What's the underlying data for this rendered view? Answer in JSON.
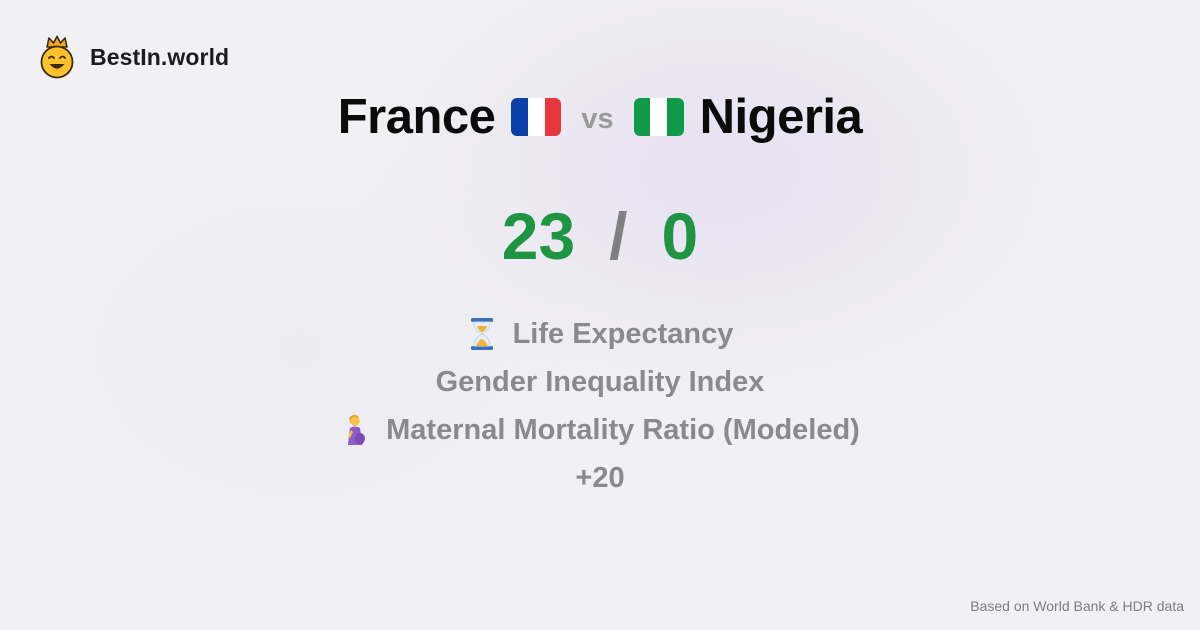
{
  "brand": {
    "name": "BestIn.world",
    "logo_icon": "crowned-smiley-logo-icon"
  },
  "comparison": {
    "country_a": "France",
    "flag_a_icon": "france-flag-icon",
    "separator": "vs",
    "country_b": "Nigeria",
    "flag_b_icon": "nigeria-flag-icon"
  },
  "score": {
    "a": "23",
    "separator": "/",
    "b": "0"
  },
  "metrics": [
    {
      "icon": "hourglass-icon",
      "label": "Life Expectancy"
    },
    {
      "icon": "",
      "label": "Gender Inequality Index"
    },
    {
      "icon": "pregnant-woman-icon",
      "label": "Maternal Mortality Ratio (Modeled)"
    }
  ],
  "more": "+20",
  "footer": "Based on World Bank & HDR data",
  "colors": {
    "score_green": "#1f9443",
    "metric_gray": "#8a8a8c",
    "france_blue": "#0a3fa8",
    "france_red": "#e8383d",
    "nigeria_green": "#0e9a48"
  }
}
